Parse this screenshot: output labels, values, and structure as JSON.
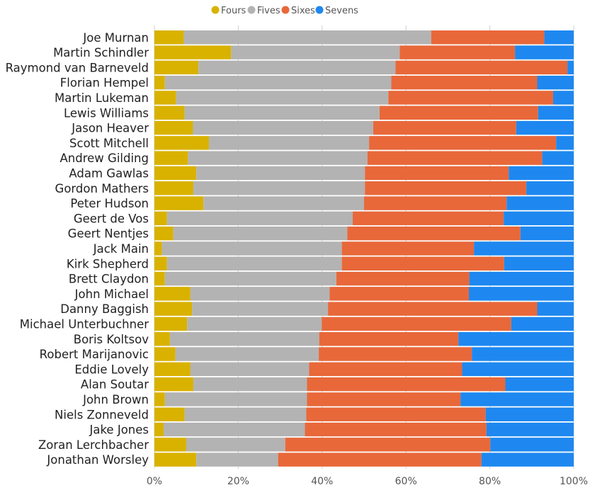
{
  "chart_data": {
    "type": "bar",
    "orientation": "horizontal",
    "stacked": "percent",
    "title": "",
    "xlabel": "",
    "ylabel": "",
    "xlim": [
      0,
      100
    ],
    "x_ticks": [
      "0%",
      "20%",
      "40%",
      "60%",
      "80%",
      "100%"
    ],
    "x_tick_values": [
      0,
      20,
      40,
      60,
      80,
      100
    ],
    "grid": "vertical",
    "legend": "top-center",
    "categories": [
      "Joe Murnan",
      "Martin Schindler",
      "Raymond van Barneveld",
      "Florian Hempel",
      "Martin Lukeman",
      "Lewis Williams",
      "Jason Heaver",
      "Scott Mitchell",
      "Andrew Gilding",
      "Adam Gawlas",
      "Gordon Mathers",
      "Peter Hudson",
      "Geert de Vos",
      "Geert Nentjes",
      "Jack Main",
      "Kirk Shepherd",
      "Brett Claydon",
      "John Michael",
      "Danny Baggish",
      "Michael Unterbuchner",
      "Boris Koltsov",
      "Robert Marijanovic",
      "Eddie Lovely",
      "Alan Soutar",
      "John Brown",
      "Niels Zonneveld",
      "Jake Jones",
      "Zoran Lerchbacher",
      "Jonathan Worsley"
    ],
    "series": [
      {
        "name": "Fours",
        "color": "#d9b200",
        "values": [
          7.0,
          18.3,
          10.5,
          2.5,
          5.2,
          7.2,
          9.2,
          13.0,
          8.0,
          10.0,
          9.3,
          11.7,
          3.0,
          4.5,
          1.8,
          3.0,
          2.5,
          8.6,
          9.0,
          7.8,
          3.7,
          5.0,
          8.6,
          9.3,
          2.5,
          7.2,
          2.2,
          7.6,
          10.0
        ]
      },
      {
        "name": "Fives",
        "color": "#b3b3b3",
        "values": [
          59.0,
          40.2,
          47.0,
          54.0,
          50.6,
          46.5,
          43.0,
          38.2,
          42.8,
          40.2,
          40.9,
          38.3,
          44.3,
          41.5,
          42.9,
          41.7,
          40.9,
          33.2,
          32.4,
          32.1,
          35.6,
          34.2,
          28.3,
          27.1,
          33.9,
          29.0,
          33.7,
          23.6,
          19.5
        ]
      },
      {
        "name": "Sixes",
        "color": "#e8683a",
        "values": [
          27.0,
          27.5,
          41.0,
          34.8,
          39.3,
          37.8,
          34.1,
          44.6,
          41.7,
          34.3,
          38.5,
          34.0,
          36.0,
          41.3,
          31.5,
          38.7,
          31.7,
          33.2,
          49.9,
          45.2,
          33.2,
          36.5,
          36.5,
          47.3,
          36.6,
          42.8,
          43.3,
          48.9,
          48.5
        ]
      },
      {
        "name": "Sevens",
        "color": "#1e88f0",
        "values": [
          7.0,
          14.0,
          1.5,
          8.7,
          4.9,
          8.5,
          13.7,
          4.2,
          7.5,
          15.5,
          11.3,
          16.0,
          16.7,
          12.7,
          23.8,
          16.6,
          24.9,
          25.0,
          8.7,
          14.9,
          27.5,
          24.3,
          26.6,
          16.3,
          27.0,
          21.0,
          20.8,
          19.9,
          22.0
        ]
      }
    ]
  }
}
